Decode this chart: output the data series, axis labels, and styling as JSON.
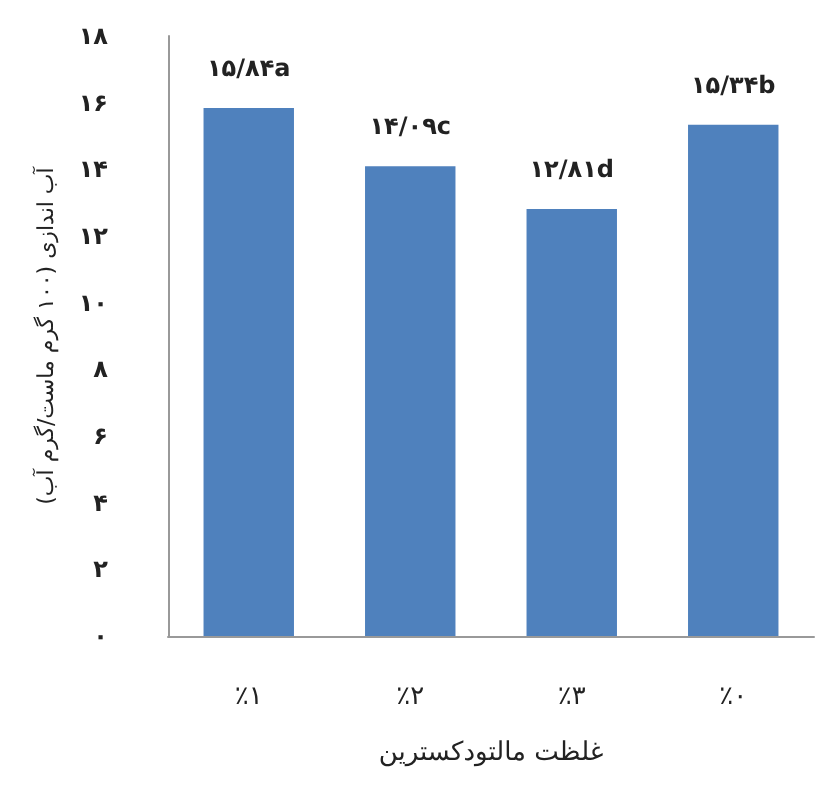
{
  "chart_data": {
    "type": "bar",
    "xlabel": "غلظت مالتودکسترین",
    "ylabel": "آب اندازی (۱۰۰ گرم ماست/گرم آب)",
    "categories": [
      "٪۱",
      "٪۲",
      "٪۳",
      "٪۰"
    ],
    "values": [
      15.84,
      14.09,
      12.81,
      15.34
    ],
    "value_labels": [
      "۱۵/۸۴a",
      "۱۴/۰۹c",
      "۱۲/۸۱d",
      "۱۵/۳۴b"
    ],
    "color": "#4f81bd",
    "ylim": [
      0,
      18
    ],
    "yticks": [
      {
        "value": 0,
        "label": "۰"
      },
      {
        "value": 2,
        "label": "۲"
      },
      {
        "value": 4,
        "label": "۴"
      },
      {
        "value": 6,
        "label": "۶"
      },
      {
        "value": 8,
        "label": "۸"
      },
      {
        "value": 10,
        "label": "۱۰"
      },
      {
        "value": 12,
        "label": "۱۲"
      },
      {
        "value": 14,
        "label": "۱۴"
      },
      {
        "value": 16,
        "label": "۱۶"
      },
      {
        "value": 18,
        "label": "۱۸"
      }
    ],
    "grid": false
  }
}
